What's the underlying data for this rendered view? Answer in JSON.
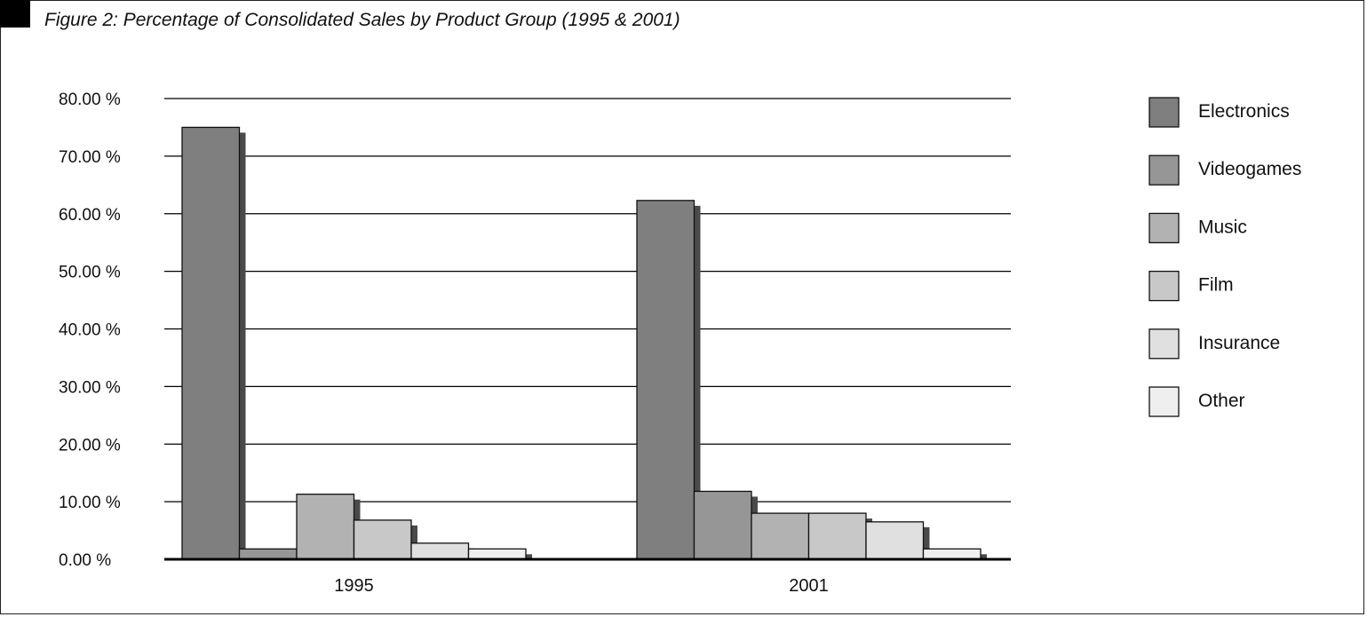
{
  "chart_data": {
    "type": "bar",
    "title": "Figure 2: Percentage of Consolidated Sales by Product Group (1995 & 2001)",
    "categories": [
      "1995",
      "2001"
    ],
    "series": [
      {
        "name": "Electronics",
        "values": [
          75.0,
          62.3
        ],
        "color": "#7f7f7f"
      },
      {
        "name": "Videogames",
        "values": [
          1.8,
          11.8
        ],
        "color": "#969696"
      },
      {
        "name": "Music",
        "values": [
          11.3,
          8.0
        ],
        "color": "#b2b2b2"
      },
      {
        "name": "Film",
        "values": [
          6.8,
          8.0
        ],
        "color": "#c8c8c8"
      },
      {
        "name": "Insurance",
        "values": [
          2.8,
          6.5
        ],
        "color": "#e0e0e0"
      },
      {
        "name": "Other",
        "values": [
          1.8,
          1.8
        ],
        "color": "#efefef"
      }
    ],
    "ylim": [
      0,
      80
    ],
    "yticks": [
      0,
      10,
      20,
      30,
      40,
      50,
      60,
      70,
      80
    ],
    "ytick_labels": [
      "0.00 %",
      "10.00 %",
      "20.00 %",
      "30.00 %",
      "40.00 %",
      "50.00 %",
      "60.00 %",
      "70.00 %",
      "80.00 %"
    ],
    "grid": true,
    "legend": "right",
    "shadow_color": "#4a4a4a"
  }
}
